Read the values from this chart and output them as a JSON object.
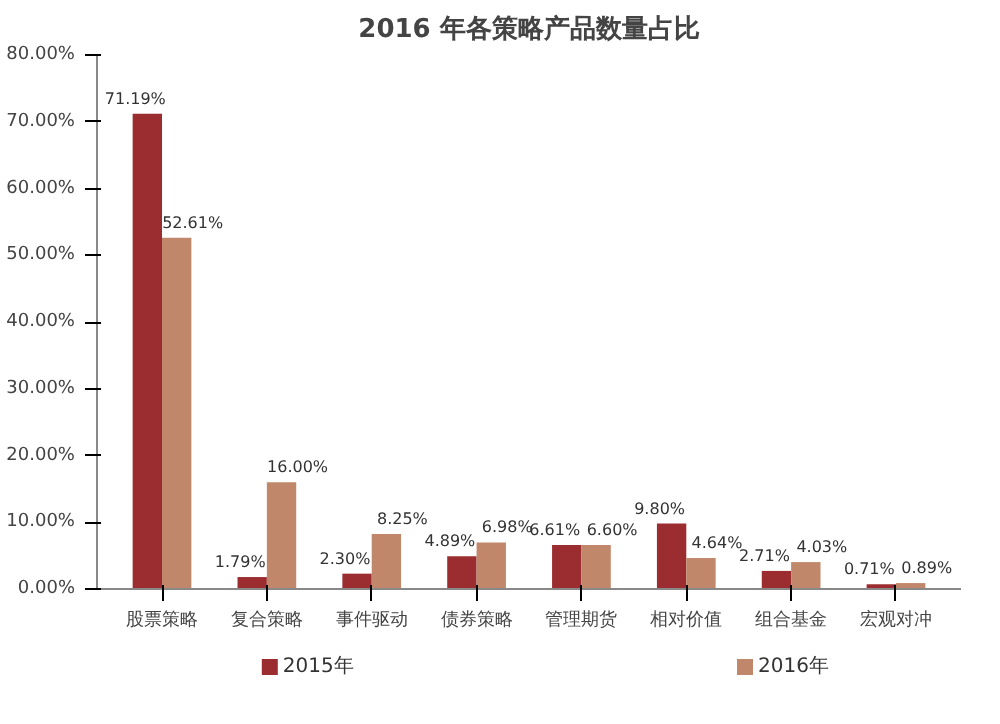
{
  "chart_data": {
    "type": "bar",
    "title": "2016 年各策略产品数量占比",
    "categories": [
      "股票策略",
      "复合策略",
      "事件驱动",
      "债券策略",
      "管理期货",
      "相对价值",
      "组合基金",
      "宏观对冲"
    ],
    "series": [
      {
        "name": "2015年",
        "color": "#9b2d30",
        "values": [
          71.19,
          1.79,
          2.3,
          4.89,
          6.61,
          9.8,
          2.71,
          0.71
        ],
        "value_labels": [
          "71.19%",
          "1.79%",
          "2.30%",
          "4.89%",
          "6.61%",
          "9.80%",
          "2.71%",
          "0.71%"
        ]
      },
      {
        "name": "2016年",
        "color": "#c0876a",
        "values": [
          52.61,
          16.0,
          8.25,
          6.98,
          6.6,
          4.64,
          4.03,
          0.89
        ],
        "value_labels": [
          "52.61%",
          "16.00%",
          "8.25%",
          "6.98%",
          "6.60%",
          "4.64%",
          "4.03%",
          "0.89%"
        ]
      }
    ],
    "ylim": [
      0,
      80
    ],
    "yticks": [
      {
        "value": 0,
        "label": "0.00%"
      },
      {
        "value": 10,
        "label": "10.00%"
      },
      {
        "value": 20,
        "label": "20.00%"
      },
      {
        "value": 30,
        "label": "30.00%"
      },
      {
        "value": 40,
        "label": "40.00%"
      },
      {
        "value": 50,
        "label": "50.00%"
      },
      {
        "value": 60,
        "label": "60.00%"
      },
      {
        "value": 70,
        "label": "70.00%"
      },
      {
        "value": 80,
        "label": "80.00%"
      }
    ],
    "grid": false,
    "legend": "bottom"
  }
}
